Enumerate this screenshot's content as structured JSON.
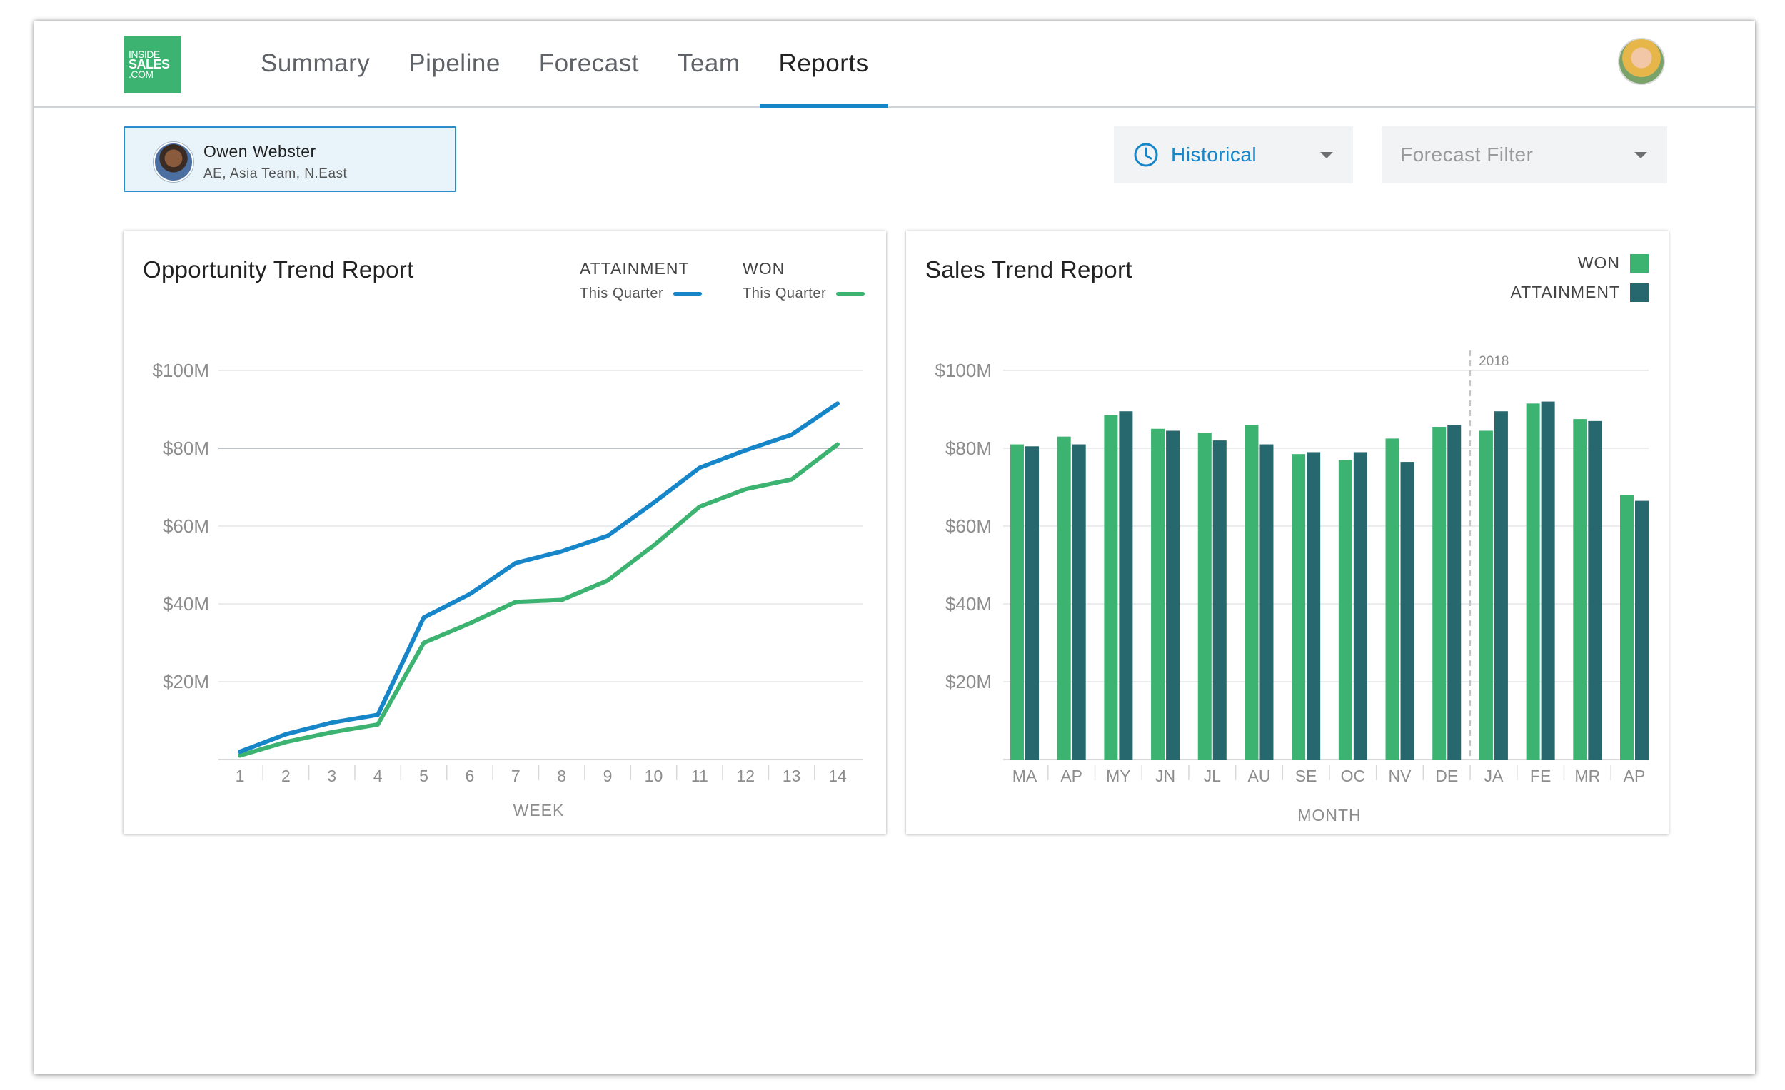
{
  "logo": {
    "line1": "INSIDE",
    "line2": "SALES",
    "line3": ".COM"
  },
  "nav": {
    "tabs": [
      {
        "label": "Summary",
        "active": false
      },
      {
        "label": "Pipeline",
        "active": false
      },
      {
        "label": "Forecast",
        "active": false
      },
      {
        "label": "Team",
        "active": false
      },
      {
        "label": "Reports",
        "active": true
      }
    ]
  },
  "person": {
    "name": "Owen Webster",
    "role": "AE, Asia Team, N.East"
  },
  "filters": {
    "historical": {
      "label": "Historical",
      "icon": "clock-icon",
      "color": "#1786c9"
    },
    "forecast": {
      "label": "Forecast Filter"
    }
  },
  "colors": {
    "attainment_line": "#1786c9",
    "won": "#3cb371",
    "attainment_bar": "#27686e"
  },
  "chart_data": [
    {
      "type": "line",
      "title": "Opportunity Trend Report",
      "xlabel": "WEEK",
      "ylabel": "",
      "x": [
        1,
        2,
        3,
        4,
        5,
        6,
        7,
        8,
        9,
        10,
        11,
        12,
        13,
        14
      ],
      "y_ticks": [
        "$100M",
        "$80M",
        "$60M",
        "$40M",
        "$20M"
      ],
      "ylim": [
        0,
        100
      ],
      "grid": true,
      "legend_position": "top-right",
      "series": [
        {
          "name": "ATTAINMENT",
          "subtitle": "This Quarter",
          "color": "#1786c9",
          "values": [
            2,
            6.5,
            9.5,
            11.5,
            36.5,
            42.5,
            50.5,
            53.5,
            57.5,
            66,
            75,
            79.5,
            83.5,
            91.5
          ]
        },
        {
          "name": "WON",
          "subtitle": "This Quarter",
          "color": "#3cb371",
          "values": [
            1,
            4.5,
            7,
            9,
            30,
            35,
            40.5,
            41,
            46,
            55,
            65,
            69.5,
            72,
            81
          ]
        }
      ]
    },
    {
      "type": "bar",
      "title": "Sales Trend Report",
      "xlabel": "MONTH",
      "ylabel": "",
      "categories": [
        "MA",
        "AP",
        "MY",
        "JN",
        "JL",
        "AU",
        "SE",
        "OC",
        "NV",
        "DE",
        "JA",
        "FE",
        "MR",
        "AP"
      ],
      "y_ticks": [
        "$100M",
        "$80M",
        "$60M",
        "$40M",
        "$20M"
      ],
      "ylim": [
        0,
        100
      ],
      "grid": true,
      "legend_position": "top-right",
      "marker": {
        "label": "2018",
        "after_category_index": 9
      },
      "series": [
        {
          "name": "WON",
          "color": "#3cb371",
          "values": [
            81,
            83,
            88.5,
            85,
            84,
            86,
            78.5,
            77,
            82.5,
            85.5,
            84.5,
            91.5,
            87.5,
            68
          ]
        },
        {
          "name": "ATTAINMENT",
          "color": "#27686e",
          "values": [
            80.5,
            81,
            89.5,
            84.5,
            82,
            81,
            79,
            79,
            76.5,
            86,
            89.5,
            92,
            87,
            66.5
          ]
        }
      ]
    }
  ]
}
